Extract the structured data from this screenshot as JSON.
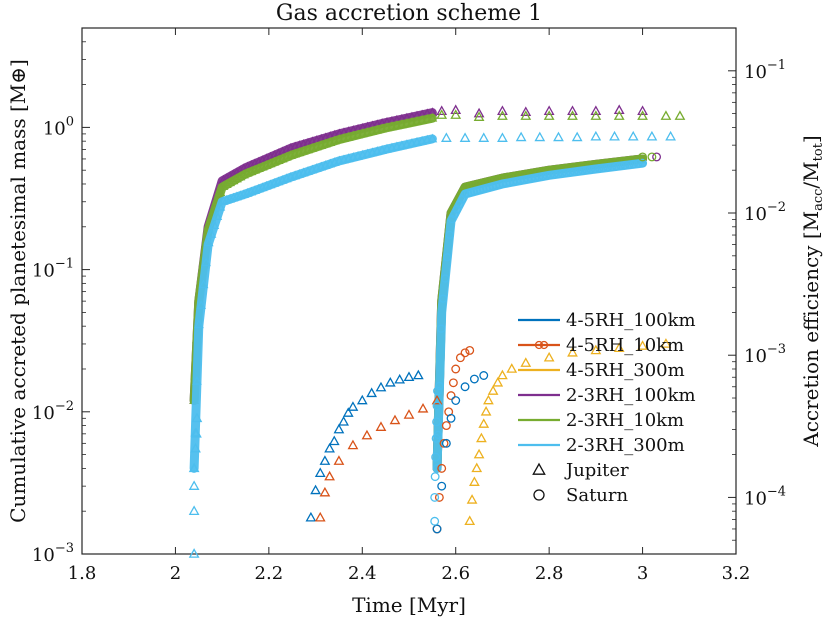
{
  "chart_data": {
    "type": "scatter",
    "title": "Gas accretion scheme 1",
    "xlabel": "Time [Myr]",
    "ylabel_left": "Cumulative accreted planetesimal mass [M⊕]",
    "ylabel_right": "Accretion efficiency [Macc/Mtot]",
    "ylabel_right_main": "Accretion efficiency [M",
    "ylabel_right_sub1": "acc",
    "ylabel_right_sep": "/M",
    "ylabel_right_sub2": "tot",
    "ylabel_right_close": "]",
    "xlim": [
      1.8,
      3.2
    ],
    "ylim_left": [
      0.001,
      5.0
    ],
    "ylim_right": [
      4e-05,
      0.2
    ],
    "yscale": "log",
    "x_ticks": [
      "1.8",
      "2",
      "2.2",
      "2.4",
      "2.6",
      "2.8",
      "3",
      "3.2"
    ],
    "y_left_ticks": [
      {
        "value": 0.001,
        "base": "10",
        "exp": "−3"
      },
      {
        "value": 0.01,
        "base": "10",
        "exp": "−2"
      },
      {
        "value": 0.1,
        "base": "10",
        "exp": "−1"
      },
      {
        "value": 1,
        "base": "10",
        "exp": "0"
      }
    ],
    "y_right_ticks": [
      {
        "value": 0.0001,
        "base": "10",
        "exp": "−4"
      },
      {
        "value": 0.001,
        "base": "10",
        "exp": "−3"
      },
      {
        "value": 0.01,
        "base": "10",
        "exp": "−2"
      },
      {
        "value": 0.1,
        "base": "10",
        "exp": "−1"
      }
    ],
    "legend": {
      "position": "lower-right",
      "entries": [
        {
          "label": "4-5RH_100km",
          "color": "#0072BD",
          "kind": "line"
        },
        {
          "label": "4-5RH_10km",
          "color": "#D95319",
          "kind": "line-circle"
        },
        {
          "label": "4-5RH_300m",
          "color": "#EDB120",
          "kind": "line"
        },
        {
          "label": "2-3RH_100km",
          "color": "#7E2F8E",
          "kind": "line"
        },
        {
          "label": "2-3RH_10km",
          "color": "#77AC30",
          "kind": "line"
        },
        {
          "label": "2-3RH_300m",
          "color": "#4DBEEE",
          "kind": "line"
        },
        {
          "label": "Jupiter",
          "color": "#111111",
          "kind": "triangle"
        },
        {
          "label": "Saturn",
          "color": "#111111",
          "kind": "circle"
        }
      ]
    },
    "series": [
      {
        "name": "2-3RH_100km",
        "planet": "Jupiter",
        "axis": "left",
        "color": "#7E2F8E",
        "kind": "band",
        "points": [
          [
            2.04,
            0.012
          ],
          [
            2.05,
            0.06
          ],
          [
            2.07,
            0.2
          ],
          [
            2.1,
            0.42
          ],
          [
            2.15,
            0.52
          ],
          [
            2.25,
            0.72
          ],
          [
            2.35,
            0.9
          ],
          [
            2.45,
            1.08
          ],
          [
            2.55,
            1.27
          ]
        ]
      },
      {
        "name": "2-3RH_10km",
        "planet": "Jupiter",
        "axis": "left",
        "color": "#77AC30",
        "kind": "band",
        "points": [
          [
            2.04,
            0.012
          ],
          [
            2.05,
            0.06
          ],
          [
            2.07,
            0.19
          ],
          [
            2.1,
            0.38
          ],
          [
            2.15,
            0.47
          ],
          [
            2.25,
            0.64
          ],
          [
            2.35,
            0.82
          ],
          [
            2.45,
            0.99
          ],
          [
            2.55,
            1.16
          ]
        ]
      },
      {
        "name": "2-3RH_300m",
        "planet": "Jupiter",
        "axis": "left",
        "color": "#4DBEEE",
        "kind": "band",
        "points": [
          [
            2.04,
            0.004
          ],
          [
            2.05,
            0.04
          ],
          [
            2.07,
            0.15
          ],
          [
            2.1,
            0.3
          ],
          [
            2.15,
            0.34
          ],
          [
            2.25,
            0.45
          ],
          [
            2.35,
            0.58
          ],
          [
            2.45,
            0.7
          ],
          [
            2.55,
            0.83
          ]
        ]
      },
      {
        "name": "2-3RH_100km",
        "planet": "Saturn",
        "axis": "left",
        "color": "#7E2F8E",
        "kind": "band",
        "points": [
          [
            2.56,
            0.004
          ],
          [
            2.57,
            0.06
          ],
          [
            2.59,
            0.25
          ],
          [
            2.62,
            0.38
          ],
          [
            2.7,
            0.44
          ],
          [
            2.8,
            0.5
          ],
          [
            2.9,
            0.55
          ],
          [
            3.0,
            0.6
          ]
        ]
      },
      {
        "name": "2-3RH_10km",
        "planet": "Saturn",
        "axis": "left",
        "color": "#77AC30",
        "kind": "band",
        "points": [
          [
            2.56,
            0.004
          ],
          [
            2.57,
            0.06
          ],
          [
            2.59,
            0.25
          ],
          [
            2.62,
            0.38
          ],
          [
            2.7,
            0.44
          ],
          [
            2.8,
            0.5
          ],
          [
            2.9,
            0.55
          ],
          [
            3.0,
            0.6
          ]
        ]
      },
      {
        "name": "2-3RH_300m",
        "planet": "Saturn",
        "axis": "left",
        "color": "#4DBEEE",
        "kind": "band",
        "points": [
          [
            2.56,
            0.004
          ],
          [
            2.57,
            0.05
          ],
          [
            2.59,
            0.22
          ],
          [
            2.62,
            0.34
          ],
          [
            2.7,
            0.4
          ],
          [
            2.8,
            0.46
          ],
          [
            2.9,
            0.51
          ],
          [
            3.0,
            0.56
          ]
        ]
      },
      {
        "name": "2-3RH_300m Jupiter descent",
        "planet": "Jupiter",
        "axis": "left",
        "color": "#4DBEEE",
        "kind": "triangle",
        "points": [
          [
            2.04,
            0.001
          ],
          [
            2.04,
            0.002
          ],
          [
            2.04,
            0.003
          ],
          [
            2.04,
            0.004
          ],
          [
            2.043,
            0.0055
          ],
          [
            2.045,
            0.007
          ],
          [
            2.046,
            0.009
          ]
        ]
      },
      {
        "name": "2-3RH_100km efficiency",
        "planet": "Jupiter",
        "axis": "left",
        "color": "#7E2F8E",
        "kind": "triangle",
        "points": [
          [
            2.57,
            1.3
          ],
          [
            2.6,
            1.32
          ],
          [
            2.65,
            1.25
          ],
          [
            2.7,
            1.3
          ],
          [
            2.75,
            1.28
          ],
          [
            2.8,
            1.3
          ],
          [
            2.85,
            1.3
          ],
          [
            2.9,
            1.3
          ],
          [
            2.95,
            1.32
          ],
          [
            3.0,
            1.3
          ]
        ]
      },
      {
        "name": "2-3RH_10km efficiency",
        "planet": "Jupiter",
        "axis": "left",
        "color": "#77AC30",
        "kind": "triangle",
        "points": [
          [
            2.57,
            1.22
          ],
          [
            2.6,
            1.22
          ],
          [
            2.65,
            1.18
          ],
          [
            2.7,
            1.2
          ],
          [
            2.75,
            1.2
          ],
          [
            2.8,
            1.2
          ],
          [
            2.85,
            1.2
          ],
          [
            2.9,
            1.2
          ],
          [
            2.95,
            1.2
          ],
          [
            3.0,
            1.2
          ],
          [
            3.05,
            1.2
          ],
          [
            3.08,
            1.2
          ]
        ]
      },
      {
        "name": "2-3RH_300m efficiency",
        "planet": "Jupiter",
        "axis": "left",
        "color": "#4DBEEE",
        "kind": "triangle",
        "points": [
          [
            2.58,
            0.84
          ],
          [
            2.62,
            0.84
          ],
          [
            2.66,
            0.84
          ],
          [
            2.7,
            0.84
          ],
          [
            2.74,
            0.85
          ],
          [
            2.78,
            0.85
          ],
          [
            2.82,
            0.85
          ],
          [
            2.86,
            0.85
          ],
          [
            2.9,
            0.86
          ],
          [
            2.94,
            0.86
          ],
          [
            2.98,
            0.86
          ],
          [
            3.02,
            0.86
          ],
          [
            3.06,
            0.86
          ]
        ]
      },
      {
        "name": "4-5RH_100km",
        "planet": "Jupiter",
        "axis": "left",
        "color": "#0072BD",
        "kind": "triangle",
        "points": [
          [
            2.29,
            0.0018
          ],
          [
            2.3,
            0.0028
          ],
          [
            2.31,
            0.0037
          ],
          [
            2.32,
            0.0045
          ],
          [
            2.33,
            0.0055
          ],
          [
            2.34,
            0.0062
          ],
          [
            2.35,
            0.0075
          ],
          [
            2.36,
            0.0085
          ],
          [
            2.37,
            0.0098
          ],
          [
            2.38,
            0.0108
          ],
          [
            2.4,
            0.012
          ],
          [
            2.42,
            0.0135
          ],
          [
            2.44,
            0.0148
          ],
          [
            2.46,
            0.016
          ],
          [
            2.48,
            0.0168
          ],
          [
            2.5,
            0.0175
          ],
          [
            2.52,
            0.018
          ]
        ]
      },
      {
        "name": "4-5RH_10km",
        "planet": "Jupiter",
        "axis": "left",
        "color": "#D95319",
        "kind": "triangle",
        "points": [
          [
            2.31,
            0.0018
          ],
          [
            2.32,
            0.0027
          ],
          [
            2.33,
            0.0035
          ],
          [
            2.35,
            0.0045
          ],
          [
            2.38,
            0.0058
          ],
          [
            2.41,
            0.0068
          ],
          [
            2.44,
            0.0078
          ],
          [
            2.47,
            0.0087
          ],
          [
            2.5,
            0.0095
          ],
          [
            2.53,
            0.0105
          ],
          [
            2.56,
            0.012
          ]
        ]
      },
      {
        "name": "4-5RH_300m",
        "planet": "Jupiter",
        "axis": "left",
        "color": "#EDB120",
        "kind": "triangle",
        "points": [
          [
            2.63,
            0.0017
          ],
          [
            2.635,
            0.0024
          ],
          [
            2.64,
            0.0032
          ],
          [
            2.645,
            0.004
          ],
          [
            2.65,
            0.005
          ],
          [
            2.655,
            0.0065
          ],
          [
            2.66,
            0.0082
          ],
          [
            2.665,
            0.01
          ],
          [
            2.67,
            0.012
          ],
          [
            2.68,
            0.014
          ],
          [
            2.69,
            0.016
          ],
          [
            2.7,
            0.018
          ],
          [
            2.72,
            0.02
          ],
          [
            2.75,
            0.022
          ],
          [
            2.8,
            0.024
          ],
          [
            2.85,
            0.026
          ],
          [
            2.9,
            0.027
          ],
          [
            2.95,
            0.028
          ],
          [
            3.0,
            0.029
          ],
          [
            3.05,
            0.03
          ]
        ]
      },
      {
        "name": "4-5RH_10km",
        "planet": "Saturn",
        "axis": "left",
        "color": "#D95319",
        "kind": "circle",
        "points": [
          [
            2.56,
            0.0015
          ],
          [
            2.565,
            0.0025
          ],
          [
            2.57,
            0.004
          ],
          [
            2.575,
            0.006
          ],
          [
            2.58,
            0.008
          ],
          [
            2.585,
            0.01
          ],
          [
            2.59,
            0.013
          ],
          [
            2.595,
            0.016
          ],
          [
            2.6,
            0.02
          ],
          [
            2.61,
            0.024
          ],
          [
            2.62,
            0.026
          ],
          [
            2.63,
            0.027
          ]
        ]
      },
      {
        "name": "4-5RH_100km",
        "planet": "Saturn",
        "axis": "left",
        "color": "#0072BD",
        "kind": "circle",
        "points": [
          [
            2.56,
            0.0015
          ],
          [
            2.57,
            0.003
          ],
          [
            2.58,
            0.006
          ],
          [
            2.59,
            0.009
          ],
          [
            2.6,
            0.012
          ],
          [
            2.62,
            0.015
          ],
          [
            2.64,
            0.017
          ],
          [
            2.66,
            0.018
          ]
        ]
      },
      {
        "name": "2-3RH_300m",
        "planet": "Saturn",
        "axis": "left",
        "color": "#4DBEEE",
        "kind": "circle",
        "points": [
          [
            2.555,
            0.0017
          ],
          [
            2.555,
            0.0025
          ],
          [
            2.556,
            0.0035
          ],
          [
            2.557,
            0.0048
          ],
          [
            2.558,
            0.0065
          ],
          [
            2.559,
            0.0085
          ],
          [
            2.56,
            0.011
          ],
          [
            2.561,
            0.014
          ]
        ]
      },
      {
        "name": "2-3RH_100km end",
        "planet": "Saturn",
        "axis": "left",
        "color": "#7E2F8E",
        "kind": "circle",
        "points": [
          [
            3.03,
            0.62
          ]
        ]
      },
      {
        "name": "2-3RH_10km end",
        "planet": "Saturn",
        "axis": "left",
        "color": "#77AC30",
        "kind": "circle",
        "points": [
          [
            3.0,
            0.62
          ],
          [
            3.02,
            0.62
          ]
        ]
      }
    ]
  }
}
